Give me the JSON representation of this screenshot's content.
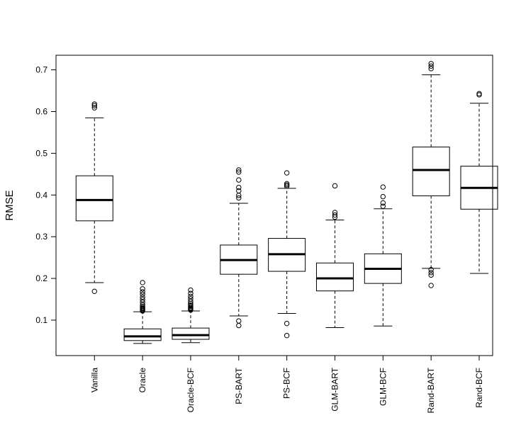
{
  "chart_data": {
    "type": "boxplot",
    "title": "",
    "xlabel": "",
    "ylabel": "RMSE",
    "ylim": [
      0.015,
      0.735
    ],
    "yticks": [
      0.1,
      0.2,
      0.3,
      0.4,
      0.5,
      0.6,
      0.7
    ],
    "ytick_labels": [
      "0.1",
      "0.2",
      "0.3",
      "0.4",
      "0.5",
      "0.6",
      "0.7"
    ],
    "grid": false,
    "categories": [
      "Vanilla",
      "Oracle",
      "Oracle-BCF",
      "PS-BART",
      "PS-BCF",
      "GLM-BART",
      "GLM-BCF",
      "Rand-BART",
      "Rand-BCF"
    ],
    "boxes": [
      {
        "name": "Vanilla",
        "whisker_low": 0.19,
        "q1": 0.338,
        "median": 0.388,
        "q3": 0.446,
        "whisker_high": 0.585,
        "outliers": [
          0.169,
          0.609,
          0.614,
          0.618
        ]
      },
      {
        "name": "Oracle",
        "whisker_low": 0.044,
        "q1": 0.051,
        "median": 0.061,
        "q3": 0.079,
        "whisker_high": 0.12,
        "outliers": [
          0.122,
          0.124,
          0.126,
          0.128,
          0.13,
          0.133,
          0.137,
          0.143,
          0.149,
          0.155,
          0.162,
          0.168,
          0.175,
          0.19
        ]
      },
      {
        "name": "Oracle-BCF",
        "whisker_low": 0.046,
        "q1": 0.054,
        "median": 0.064,
        "q3": 0.081,
        "whisker_high": 0.122,
        "outliers": [
          0.124,
          0.126,
          0.128,
          0.13,
          0.133,
          0.136,
          0.14,
          0.145,
          0.151,
          0.157,
          0.164,
          0.172
        ]
      },
      {
        "name": "PS-BART",
        "whisker_low": 0.11,
        "q1": 0.21,
        "median": 0.244,
        "q3": 0.28,
        "whisker_high": 0.38,
        "outliers": [
          0.087,
          0.098,
          0.393,
          0.399,
          0.41,
          0.418,
          0.436,
          0.455,
          0.46
        ]
      },
      {
        "name": "PS-BCF",
        "whisker_low": 0.116,
        "q1": 0.217,
        "median": 0.258,
        "q3": 0.296,
        "whisker_high": 0.416,
        "outliers": [
          0.063,
          0.092,
          0.421,
          0.424,
          0.427,
          0.453
        ]
      },
      {
        "name": "GLM-BART",
        "whisker_low": 0.082,
        "q1": 0.17,
        "median": 0.2,
        "q3": 0.237,
        "whisker_high": 0.34,
        "outliers": [
          0.347,
          0.352,
          0.358,
          0.422
        ]
      },
      {
        "name": "GLM-BCF",
        "whisker_low": 0.086,
        "q1": 0.188,
        "median": 0.223,
        "q3": 0.259,
        "whisker_high": 0.367,
        "outliers": [
          0.373,
          0.381,
          0.396,
          0.419
        ]
      },
      {
        "name": "Rand-BART",
        "whisker_low": 0.224,
        "q1": 0.398,
        "median": 0.46,
        "q3": 0.515,
        "whisker_high": 0.688,
        "outliers": [
          0.183,
          0.208,
          0.214,
          0.221,
          0.703,
          0.709,
          0.715
        ]
      },
      {
        "name": "Rand-BCF",
        "whisker_low": 0.212,
        "q1": 0.366,
        "median": 0.417,
        "q3": 0.469,
        "whisker_high": 0.62,
        "outliers": [
          0.64,
          0.643
        ]
      }
    ]
  }
}
